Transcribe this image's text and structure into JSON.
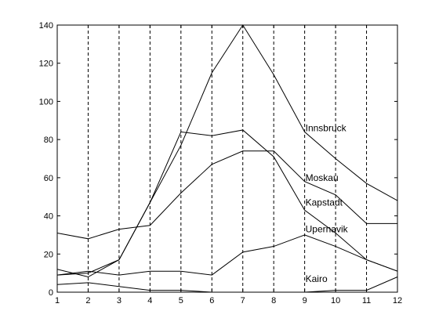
{
  "chart_data": {
    "type": "line",
    "title": "",
    "xlabel": "",
    "ylabel": "",
    "x": [
      1,
      2,
      3,
      4,
      5,
      6,
      7,
      8,
      9,
      10,
      11,
      12
    ],
    "xlim": [
      1,
      12
    ],
    "ylim": [
      0,
      140
    ],
    "xticks": [
      1,
      2,
      3,
      4,
      5,
      6,
      7,
      8,
      9,
      10,
      11,
      12
    ],
    "yticks": [
      0,
      20,
      40,
      60,
      80,
      100,
      120,
      140
    ],
    "vertical_dashed_grid": true,
    "line_color": "#000000",
    "series": [
      {
        "name": "Innsbruck",
        "values": [
          9,
          10,
          17,
          47,
          77,
          115,
          140,
          114,
          84,
          70,
          57,
          48
        ]
      },
      {
        "name": "Moskau",
        "values": [
          31,
          28,
          33,
          35,
          52,
          67,
          74,
          74,
          58,
          51,
          36,
          36
        ]
      },
      {
        "name": "Kapstadt",
        "values": [
          12,
          8,
          17,
          47,
          84,
          82,
          85,
          71,
          43,
          31,
          17,
          11
        ]
      },
      {
        "name": "Upernavik",
        "values": [
          9,
          11,
          9,
          11,
          11,
          9,
          21,
          24,
          30,
          24,
          17,
          11
        ]
      },
      {
        "name": "Kairo",
        "values": [
          4,
          5,
          3,
          1,
          1,
          0,
          0,
          0,
          0,
          1,
          1,
          8
        ]
      }
    ],
    "annotations": [
      {
        "text": "Innsbruck",
        "x": 9,
        "y": 86
      },
      {
        "text": "Moskau",
        "x": 9,
        "y": 60
      },
      {
        "text": "Kapstadt",
        "x": 9,
        "y": 47
      },
      {
        "text": "Upernavik",
        "x": 9,
        "y": 33
      },
      {
        "text": "Kairo",
        "x": 9,
        "y": 7
      }
    ]
  }
}
